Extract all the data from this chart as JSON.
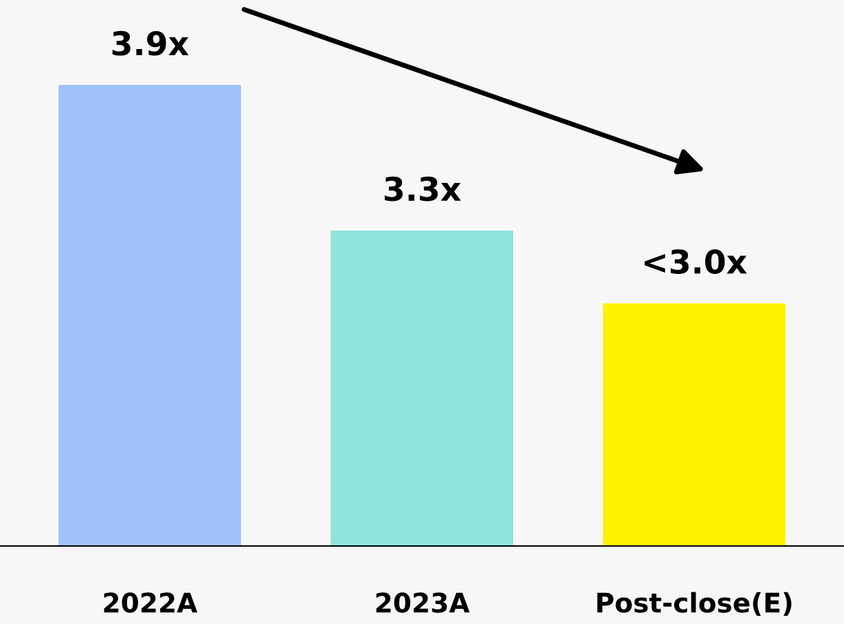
{
  "chart_data": {
    "type": "bar",
    "categories": [
      "2022A",
      "2023A",
      "Post-close(E)"
    ],
    "values": [
      3.9,
      3.3,
      3.0
    ],
    "colors": [
      "#a0c2fa",
      "#8fe3da",
      "#fff200"
    ],
    "value_labels": [
      "3.9x",
      "3.3x",
      "<3.0x"
    ],
    "ylim": [
      2.0,
      4.25
    ],
    "tick_labels": "x",
    "grid": false,
    "legend": false
  }
}
